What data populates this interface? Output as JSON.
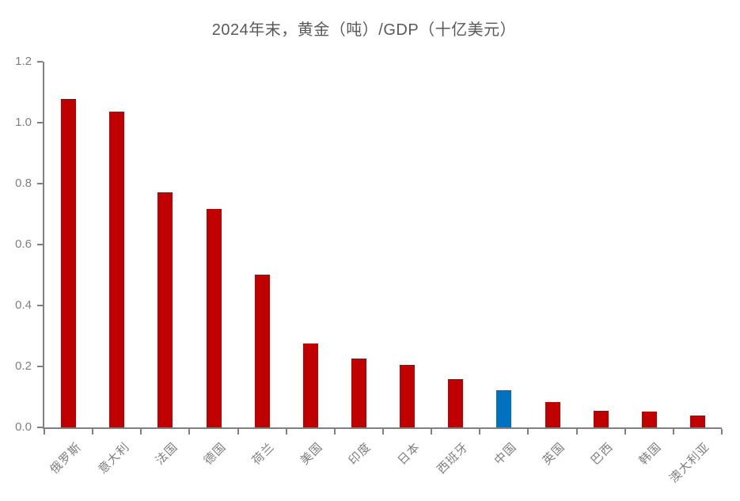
{
  "chart_data": {
    "type": "bar",
    "title": "2024年末，黄金（吨）/GDP（十亿美元）",
    "categories": [
      "俄罗斯",
      "意大利",
      "法国",
      "德国",
      "荷兰",
      "美国",
      "印度",
      "日本",
      "西班牙",
      "中国",
      "英国",
      "巴西",
      "韩国",
      "澳大利亚"
    ],
    "values": [
      1.077,
      1.036,
      0.771,
      0.716,
      0.502,
      0.276,
      0.225,
      0.205,
      0.158,
      0.122,
      0.084,
      0.055,
      0.052,
      0.04
    ],
    "highlight_category": "中国",
    "xlabel": "",
    "ylabel": "",
    "ylim": [
      0,
      1.2
    ],
    "ytick_labels": [
      "0.0",
      "0.2",
      "0.4",
      "0.6",
      "0.8",
      "1.0",
      "1.2"
    ],
    "grid": false,
    "legend_position": "none",
    "colors": {
      "bar_default": "#c00000",
      "bar_highlight": "#0070c0",
      "title_text": "#595959",
      "axis_line": "#808080",
      "tick_text": "#7f7f7f",
      "background": "#ffffff"
    }
  }
}
